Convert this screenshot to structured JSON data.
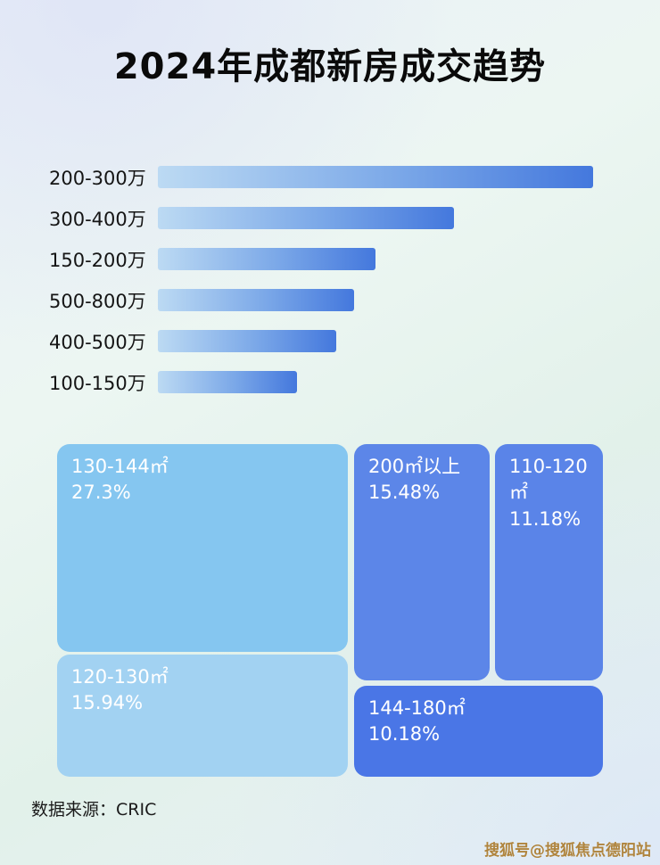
{
  "page": {
    "title": "2024年成都新房成交趋势",
    "source": "数据来源：CRIC",
    "watermark": "搜狐号@搜狐焦点德阳站"
  },
  "chart_data": [
    {
      "type": "bar",
      "orientation": "horizontal",
      "title": "2024年成都新房成交趋势",
      "categories": [
        "200-300万",
        "300-400万",
        "150-200万",
        "500-800万",
        "400-500万",
        "100-150万"
      ],
      "values": [
        100,
        68,
        50,
        45,
        41,
        32
      ],
      "value_note": "relative bar lengths in % of longest bar; no numeric axis shown in image",
      "xlabel": "",
      "ylabel": "",
      "grid": false,
      "legend": false,
      "colors": {
        "bar_gradient_start": "#bcdaf3",
        "bar_gradient_end": "#4478dd"
      }
    },
    {
      "type": "treemap",
      "items": [
        {
          "label": "130-144㎡",
          "percent": "27.3%",
          "value": 27.3,
          "color": "#85c6f0"
        },
        {
          "label": "200㎡以上",
          "percent": "15.48%",
          "value": 15.48,
          "color": "#5c86e8"
        },
        {
          "label": "110-120㎡",
          "percent": "11.18%",
          "value": 11.18,
          "color": "#5a84e8"
        },
        {
          "label": "120-130㎡",
          "percent": "15.94%",
          "value": 15.94,
          "color": "#a2d2f2"
        },
        {
          "label": "144-180㎡",
          "percent": "10.18%",
          "value": 10.18,
          "color": "#4a76e6"
        }
      ]
    }
  ]
}
